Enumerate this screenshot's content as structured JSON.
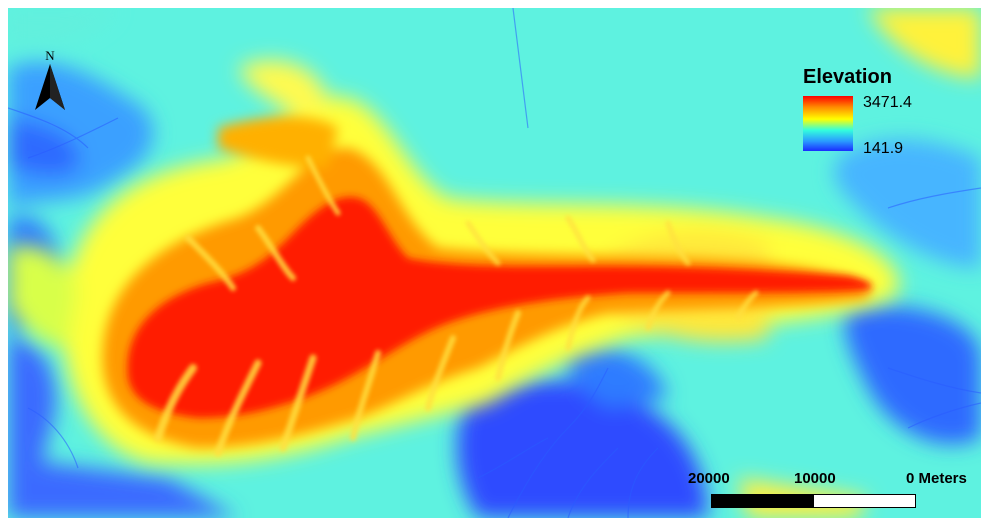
{
  "map": {
    "north_arrow": {
      "letter": "N",
      "icon": "north-arrow-icon"
    },
    "legend": {
      "title": "Elevation",
      "max_label": "3471.4",
      "min_label": "141.9",
      "ramp_colors": [
        "#ff0000",
        "#ff8a00",
        "#ffff00",
        "#33ffdd",
        "#2a9cff",
        "#1a2cff"
      ]
    },
    "scale_bar": {
      "labels": [
        "20000",
        "10000",
        "0 Meters"
      ]
    },
    "palette": {
      "low": "#2d4bff",
      "mid_low": "#3fd9ff",
      "mid": "#5ef2e0",
      "mid_high": "#ffff3a",
      "high": "#ff9a00",
      "peak": "#ff1a00"
    }
  }
}
